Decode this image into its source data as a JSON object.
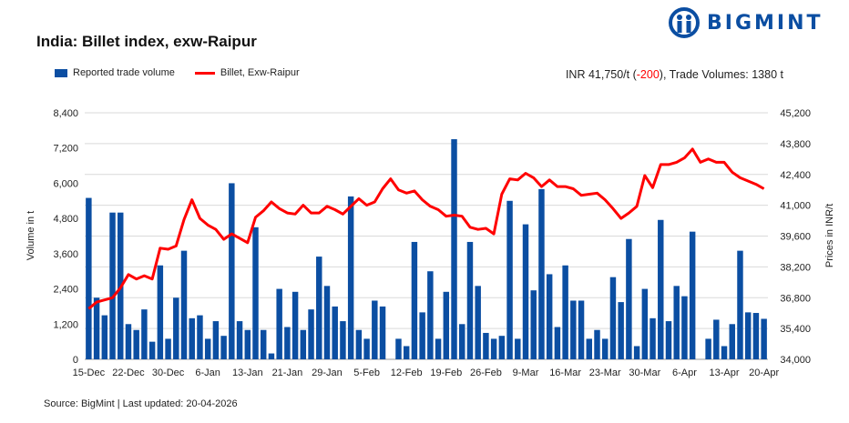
{
  "header": {
    "title": "India: Billet index, exw-Raipur",
    "logo_text": "BIGMINT",
    "brand_color": "#0b4ea2"
  },
  "summary": {
    "prefix": "INR 41,750/t (",
    "change": "-200",
    "suffix": "), Trade Volumes:  1380 t"
  },
  "footer": {
    "source": "Source: BigMint | Last updated: 20-04-2026"
  },
  "chart_data": {
    "type": "bar+line",
    "title": "India: Billet index, exw-Raipur",
    "legend_placement": "top-left",
    "grid": true,
    "x_tick_every": 5,
    "x_tick_labels": [
      "15-Dec",
      "22-Dec",
      "30-Dec",
      "6-Jan",
      "13-Jan",
      "21-Jan",
      "29-Jan",
      "5-Feb",
      "12-Feb",
      "19-Feb",
      "26-Feb",
      "9-Mar",
      "16-Mar",
      "23-Mar",
      "30-Mar",
      "6-Apr",
      "13-Apr",
      "20-Apr"
    ],
    "y_left": {
      "label": "Volume in t",
      "range": [
        0,
        8400
      ],
      "ticks": [
        "0",
        "1,200",
        "2,400",
        "3,600",
        "4,800",
        "6,000",
        "7,200",
        "8,400"
      ]
    },
    "y_right": {
      "label": "Prices in INR/t",
      "range": [
        34000,
        45200
      ],
      "ticks": [
        "34,000",
        "35,400",
        "36,800",
        "38,200",
        "39,600",
        "41,000",
        "42,400",
        "43,800",
        "45,200"
      ]
    },
    "series": [
      {
        "name": "Reported trade volume",
        "type": "bar",
        "axis": "left",
        "color": "#0b4ea2",
        "values": [
          5500,
          2100,
          1500,
          5000,
          5000,
          1200,
          1000,
          1700,
          600,
          3200,
          700,
          2100,
          3700,
          1400,
          1500,
          700,
          1300,
          800,
          6000,
          1300,
          1000,
          4500,
          1000,
          200,
          2400,
          1100,
          2300,
          1000,
          1700,
          3500,
          2500,
          1800,
          1300,
          5550,
          1000,
          700,
          2000,
          1800,
          0,
          700,
          450,
          4000,
          1600,
          3000,
          700,
          2300,
          7500,
          1200,
          4000,
          2500,
          900,
          700,
          800,
          5400,
          700,
          4600,
          2350,
          5800,
          2900,
          1100,
          3200,
          2000,
          2000,
          700,
          1000,
          700,
          2800,
          1950,
          4100,
          450,
          2400,
          1400,
          4750,
          1300,
          2500,
          2150,
          4350,
          0,
          700,
          1350,
          450,
          1200,
          3700,
          1600,
          1580,
          1380
        ]
      },
      {
        "name": "Billet, Exw-Raipur",
        "type": "line",
        "axis": "right",
        "color": "#ff0000",
        "values": [
          36300,
          36600,
          36700,
          36800,
          37250,
          37850,
          37650,
          37800,
          37650,
          39050,
          39000,
          39150,
          40350,
          41250,
          40400,
          40100,
          39900,
          39450,
          39700,
          39500,
          39300,
          40450,
          40750,
          41150,
          40850,
          40650,
          40600,
          41000,
          40650,
          40650,
          40950,
          40800,
          40600,
          40950,
          41300,
          41000,
          41150,
          41750,
          42200,
          41700,
          41550,
          41650,
          41250,
          40950,
          40800,
          40500,
          40550,
          40500,
          40000,
          39900,
          39950,
          39700,
          41500,
          42200,
          42150,
          42450,
          42250,
          41850,
          42150,
          41850,
          41850,
          41750,
          41450,
          41500,
          41550,
          41250,
          40850,
          40400,
          40650,
          40950,
          42350,
          41800,
          42850,
          42850,
          42950,
          43150,
          43550,
          42950,
          43100,
          42950,
          42950,
          42500,
          42250,
          42100,
          41950,
          41750
        ]
      }
    ]
  }
}
